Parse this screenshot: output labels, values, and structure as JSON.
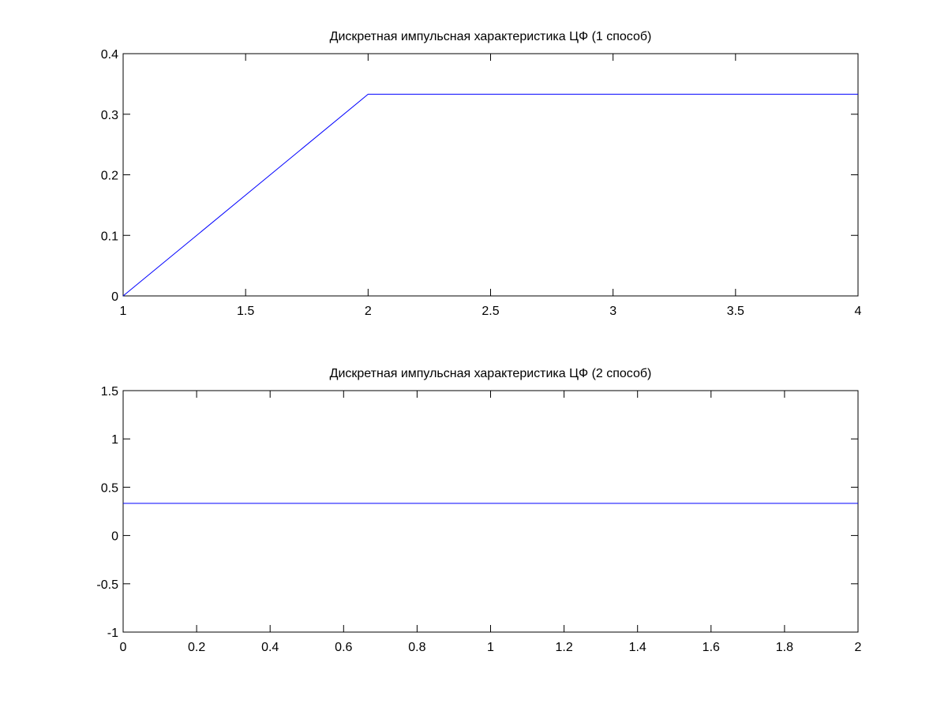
{
  "chart_data": [
    {
      "type": "line",
      "title": "Дискретная импульсная характеристика ЦФ (1 способ)",
      "x": [
        1,
        2,
        3,
        4
      ],
      "values": [
        0,
        0.333,
        0.333,
        0.333
      ],
      "color": "#0000ff",
      "xlim": [
        1,
        4
      ],
      "xticks": [
        1,
        1.5,
        2,
        2.5,
        3,
        3.5,
        4
      ],
      "ylim": [
        0,
        0.4
      ],
      "yticks": [
        0,
        0.1,
        0.2,
        0.3,
        0.4
      ]
    },
    {
      "type": "line",
      "title": "Дискретная импульсная характеристика ЦФ (2 способ)",
      "x": [
        0,
        2
      ],
      "values": [
        0.333,
        0.333
      ],
      "color": "#0000ff",
      "xlim": [
        0,
        2
      ],
      "xticks": [
        0,
        0.2,
        0.4,
        0.6,
        0.8,
        1,
        1.2,
        1.4,
        1.6,
        1.8,
        2
      ],
      "ylim": [
        -1,
        1.5
      ],
      "yticks": [
        -1,
        -0.5,
        0,
        0.5,
        1,
        1.5
      ]
    }
  ]
}
